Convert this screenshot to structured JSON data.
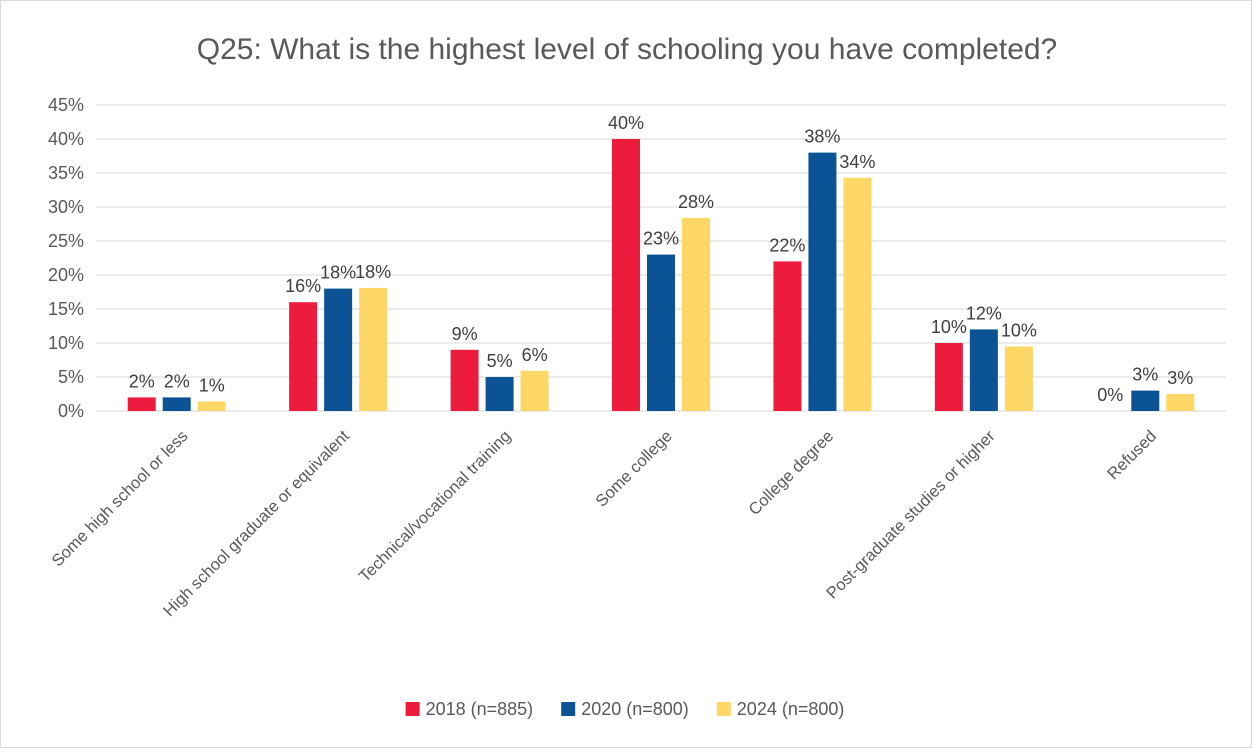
{
  "chart_data": {
    "type": "bar",
    "title": "Q25: What is the highest level of schooling you have completed?",
    "xlabel": "",
    "ylabel": "",
    "ylim": [
      0,
      45
    ],
    "yticks": [
      "0%",
      "5%",
      "10%",
      "15%",
      "20%",
      "25%",
      "30%",
      "35%",
      "40%",
      "45%"
    ],
    "categories": [
      "Some high school or less",
      "High school graduate or equivalent",
      "Technical/vocational training",
      "Some college",
      "College degree",
      "Post-graduate studies or higher",
      "Refused"
    ],
    "series": [
      {
        "name": "2018 (n=885)",
        "color": "#ee1c3c",
        "values": [
          2,
          16,
          9,
          40,
          22,
          10,
          0
        ],
        "labels": [
          "2%",
          "16%",
          "9%",
          "40%",
          "22%",
          "10%",
          "0%"
        ]
      },
      {
        "name": "2020 (n=800)",
        "color": "#0b5394",
        "values": [
          2,
          18,
          5,
          23,
          38,
          12,
          3
        ],
        "labels": [
          "2%",
          "18%",
          "5%",
          "23%",
          "38%",
          "12%",
          "3%"
        ]
      },
      {
        "name": "2024 (n=800)",
        "color": "#fed766",
        "values": [
          1.4,
          18.1,
          5.9,
          28.4,
          34.3,
          9.5,
          2.5
        ],
        "labels": [
          "1%",
          "18%",
          "6%",
          "28%",
          "34%",
          "10%",
          "3%"
        ]
      }
    ],
    "grid": true,
    "legend_position": "bottom"
  }
}
